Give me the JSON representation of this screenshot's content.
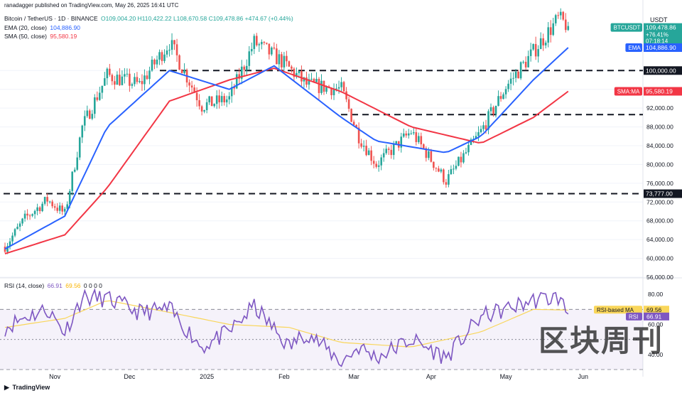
{
  "publisher_line": "ranadagger published on TradingView.com, May 26, 2025 16:41 UTC",
  "header": {
    "symbol": "Bitcoin / TetherUS · 1D · BINANCE",
    "ohlc": "O109,004.20 H110,422.22 L108,670.58 C109,478.86 +474.67 (+0.44%)",
    "ema_label": "EMA (20, close)",
    "ema_value": "104,886.90",
    "sma_label": "SMA (50, close)",
    "sma_value": "95,580.19",
    "rsi_label": "RSI (14, close)",
    "rsi_value": "66.91",
    "rsi_ma_value": "69.56",
    "rsi_extra": "0 0 0 0"
  },
  "price_axis": {
    "currency": "USDT",
    "ticks": [
      "100,000.00",
      "96,000.00",
      "92,000.00",
      "88,000.00",
      "84,000.00",
      "80,000.00",
      "76,000.00",
      "72,000.00",
      "68,000.00",
      "64,000.00",
      "60,000.00",
      "56,000.00"
    ],
    "badges": [
      {
        "label": "BTCUSDT",
        "value": "109,478.86",
        "extra": [
          "+76.41%",
          "07:18:14"
        ],
        "color": "#26a69a"
      },
      {
        "label": "EMA",
        "value": "104,886.90",
        "color": "#2962ff"
      },
      {
        "label": "",
        "value": "100,000.00",
        "color": "#131722"
      },
      {
        "label": "SMA:MA",
        "value": "95,580.19",
        "color": "#f23645"
      },
      {
        "label": "",
        "value": "73,777.00",
        "color": "#131722"
      }
    ]
  },
  "rsi_axis": {
    "ticks": [
      "80.00",
      "60.00",
      "40.00"
    ],
    "badges": [
      {
        "label": "RSI-based MA",
        "value": "69.56",
        "color": "#f9d65a"
      },
      {
        "label": "RSI",
        "value": "66.91",
        "color": "#7e57c2"
      }
    ]
  },
  "time_axis": [
    "Nov",
    "Dec",
    "2025",
    "Feb",
    "Mar",
    "Apr",
    "May",
    "Jun"
  ],
  "footer_brand": "TradingView",
  "watermark": "区块周刊",
  "colors": {
    "up": "#26a69a",
    "down": "#ef5350",
    "ema": "#2962ff",
    "sma": "#f23645",
    "rsi": "#7e57c2",
    "rsi_ma": "#f9d65a"
  },
  "chart_data": [
    {
      "type": "candlestick",
      "title": "Bitcoin / TetherUS · 1D · BINANCE",
      "ylim": [
        56000,
        112000
      ],
      "horizontal_levels": [
        100000,
        73777
      ],
      "price_keyframes": {
        "x": [
          "2024-10-12",
          "2024-10-20",
          "2024-10-29",
          "2024-11-05",
          "2024-11-12",
          "2024-11-22",
          "2024-12-05",
          "2024-12-17",
          "2024-12-30",
          "2025-01-10",
          "2025-01-20",
          "2025-01-31",
          "2025-02-10",
          "2025-02-24",
          "2025-03-03",
          "2025-03-10",
          "2025-03-24",
          "2025-04-07",
          "2025-04-21",
          "2025-05-01",
          "2025-05-12",
          "2025-05-22",
          "2025-05-26"
        ],
        "y": [
          62500,
          68500,
          72500,
          69500,
          88000,
          99000,
          97000,
          106000,
          92500,
          94000,
          106000,
          102000,
          97000,
          96000,
          86000,
          80000,
          87000,
          76500,
          87000,
          96500,
          104000,
          111000,
          109479
        ]
      },
      "ema20_keyframes": {
        "x": [
          "2024-10-12",
          "2024-11-05",
          "2024-11-22",
          "2024-12-17",
          "2025-01-10",
          "2025-01-28",
          "2025-02-24",
          "2025-03-10",
          "2025-04-07",
          "2025-04-21",
          "2025-05-12",
          "2025-05-26"
        ],
        "y": [
          62000,
          69000,
          88000,
          100000,
          96000,
          101000,
          90000,
          85000,
          82500,
          86000,
          98000,
          104887
        ]
      },
      "sma50_keyframes": {
        "x": [
          "2024-10-12",
          "2024-11-05",
          "2024-11-22",
          "2024-12-17",
          "2025-01-10",
          "2025-01-28",
          "2025-02-24",
          "2025-03-24",
          "2025-04-21",
          "2025-05-12",
          "2025-05-26"
        ],
        "y": [
          61000,
          65000,
          75000,
          93500,
          98000,
          100500,
          95500,
          88000,
          84500,
          90000,
          95580
        ]
      }
    },
    {
      "type": "line",
      "title": "RSI (14, close)",
      "ylim": [
        30,
        90
      ],
      "levels": [
        70,
        30
      ],
      "rsi_keyframes": {
        "x": [
          "2024-10-12",
          "2024-10-20",
          "2024-10-29",
          "2024-11-05",
          "2024-11-12",
          "2024-11-22",
          "2024-12-05",
          "2024-12-17",
          "2024-12-30",
          "2025-01-10",
          "2025-01-20",
          "2025-02-03",
          "2025-02-10",
          "2025-02-24",
          "2025-03-03",
          "2025-03-10",
          "2025-03-24",
          "2025-04-07",
          "2025-04-21",
          "2025-05-01",
          "2025-05-12",
          "2025-05-22",
          "2025-05-26"
        ],
        "y": [
          58,
          65,
          70,
          55,
          78,
          77,
          68,
          70,
          45,
          55,
          72,
          45,
          55,
          35,
          45,
          38,
          50,
          38,
          65,
          70,
          76,
          78,
          66.91
        ]
      },
      "rsi_ma_keyframes": {
        "x": [
          "2024-10-12",
          "2024-11-05",
          "2024-11-22",
          "2024-12-17",
          "2025-01-10",
          "2025-02-03",
          "2025-02-24",
          "2025-03-24",
          "2025-04-21",
          "2025-05-12",
          "2025-05-26"
        ],
        "y": [
          58,
          64,
          76,
          68,
          60,
          58,
          48,
          45,
          55,
          70,
          69.56
        ]
      }
    }
  ]
}
